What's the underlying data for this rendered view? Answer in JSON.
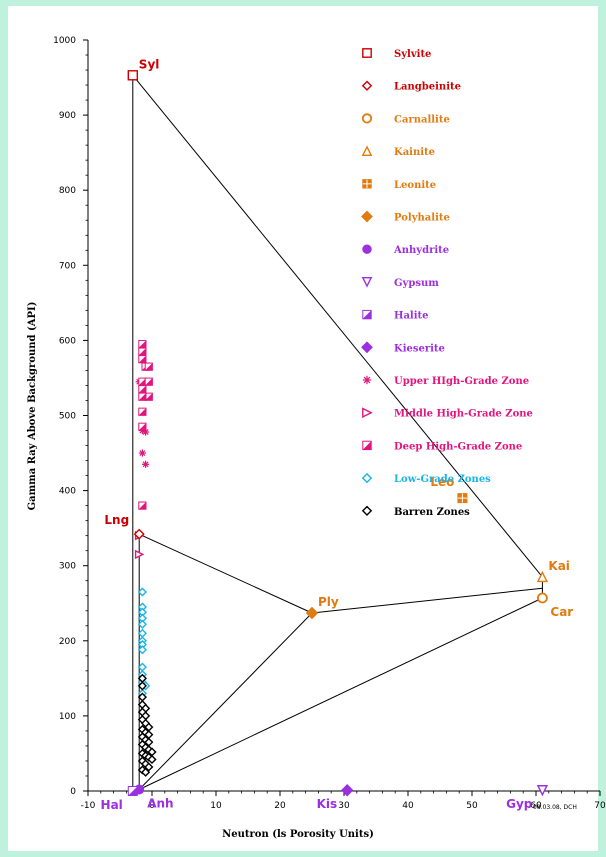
{
  "chart_data": {
    "type": "scatter",
    "xlabel": "Neutron (ls Porosity Units)",
    "ylabel": "Gamma Ray Above Background (API)",
    "xlim": [
      -10,
      70
    ],
    "ylim": [
      0,
      1000
    ],
    "x_ticks": [
      "-10",
      "0",
      "10",
      "20",
      "30",
      "40",
      "50",
      "60",
      "70"
    ],
    "y_ticks": [
      "0",
      "100",
      "200",
      "300",
      "400",
      "500",
      "600",
      "700",
      "800",
      "900",
      "1000"
    ],
    "grid": false,
    "legend_position": "top-right",
    "credit": "08.03.08, DCH",
    "legend": [
      {
        "label": "Sylvite",
        "marker": "square-open",
        "color": "#cc0000"
      },
      {
        "label": "Langbeinite",
        "marker": "diamond-open",
        "color": "#cc0000"
      },
      {
        "label": "Carnallite",
        "marker": "circle-open",
        "color": "#e07b10"
      },
      {
        "label": "Kainite",
        "marker": "triangle-open",
        "color": "#e07b10"
      },
      {
        "label": "Leonite",
        "marker": "square-grid",
        "color": "#e07b10"
      },
      {
        "label": "Polyhalite",
        "marker": "diamond-filled",
        "color": "#e07b10"
      },
      {
        "label": "Anhydrite",
        "marker": "circle-filled",
        "color": "#9b30e0"
      },
      {
        "label": "Gypsum",
        "marker": "triangle-down-open",
        "color": "#9b30e0"
      },
      {
        "label": "Halite",
        "marker": "square-half",
        "color": "#9b30e0"
      },
      {
        "label": "Kieserite",
        "marker": "diamond-filled",
        "color": "#9b30e0"
      },
      {
        "label": "Upper HIgh-Grade Zone",
        "marker": "asterisk",
        "color": "#e0157d"
      },
      {
        "label": "Middle High-Grade Zone",
        "marker": "triangle-right-open",
        "color": "#e0157d"
      },
      {
        "label": "Deep High-Grade Zone",
        "marker": "square-half",
        "color": "#e0157d"
      },
      {
        "label": "Low-Grade Zones",
        "marker": "diamond-open",
        "color": "#19b4e8"
      },
      {
        "label": "Barren Zones",
        "marker": "diamond-open",
        "color": "#000000"
      }
    ],
    "minerals": [
      {
        "label": "Syl",
        "x": -3,
        "y": 953,
        "marker": "square-open",
        "color": "#cc0000",
        "label_pos": "top-right"
      },
      {
        "label": "Lng",
        "x": -2,
        "y": 342,
        "marker": "diamond-open",
        "color": "#cc0000",
        "label_pos": "left"
      },
      {
        "label": "Car",
        "x": 61,
        "y": 257,
        "marker": "circle-open",
        "color": "#e07b10",
        "label_pos": "bottom-right"
      },
      {
        "label": "Kai",
        "x": 61,
        "y": 285,
        "marker": "triangle-open",
        "color": "#e07b10",
        "label_pos": "top-right"
      },
      {
        "label": "Leo",
        "x": 48.5,
        "y": 390,
        "marker": "square-grid",
        "color": "#e07b10",
        "label_pos": "top-left"
      },
      {
        "label": "Ply",
        "x": 25,
        "y": 237,
        "marker": "diamond-filled",
        "color": "#e07b10",
        "label_pos": "top-right"
      },
      {
        "label": "Anh",
        "x": -2,
        "y": 2,
        "marker": "circle-filled",
        "color": "#9b30e0",
        "label_pos": "bottom-right"
      },
      {
        "label": "Gyp",
        "x": 61,
        "y": 1,
        "marker": "triangle-down-open",
        "color": "#9b30e0",
        "label_pos": "bottom-left"
      },
      {
        "label": "Hal",
        "x": -3,
        "y": 0,
        "marker": "square-half",
        "color": "#9b30e0",
        "label_pos": "bottom-left"
      },
      {
        "label": "Kis",
        "x": 30.5,
        "y": 1,
        "marker": "diamond-filled",
        "color": "#9b30e0",
        "label_pos": "bottom-left"
      }
    ],
    "tie_lines": [
      [
        [
          -3,
          953
        ],
        [
          61,
          285
        ]
      ],
      [
        [
          -3,
          953
        ],
        [
          -3,
          0
        ]
      ],
      [
        [
          -2,
          342
        ],
        [
          25,
          237
        ]
      ],
      [
        [
          25,
          237
        ],
        [
          61,
          270
        ]
      ],
      [
        [
          -2,
          342
        ],
        [
          -2,
          2
        ]
      ],
      [
        [
          -2,
          2
        ],
        [
          25,
          237
        ]
      ],
      [
        [
          -2,
          2
        ],
        [
          61,
          257
        ]
      ],
      [
        [
          61,
          257
        ],
        [
          61,
          285
        ]
      ]
    ],
    "series": [
      {
        "name": "Upper HIgh-Grade Zone",
        "marker": "asterisk",
        "color": "#e0157d",
        "points": [
          [
            -2,
            545
          ],
          [
            -1.5,
            540
          ],
          [
            -1.5,
            480
          ],
          [
            -1,
            478
          ],
          [
            -1.5,
            450
          ],
          [
            -1,
            435
          ]
        ]
      },
      {
        "name": "Middle High-Grade Zone",
        "marker": "triangle-right-open",
        "color": "#e0157d",
        "points": [
          [
            -2,
            340
          ],
          [
            -2,
            315
          ]
        ]
      },
      {
        "name": "Deep High-Grade Zone",
        "marker": "square-half",
        "color": "#e0157d",
        "points": [
          [
            -1.5,
            595
          ],
          [
            -1.5,
            585
          ],
          [
            -1.5,
            575
          ],
          [
            -1,
            565
          ],
          [
            -0.5,
            565
          ],
          [
            -1.5,
            545
          ],
          [
            -0.5,
            545
          ],
          [
            -1.5,
            535
          ],
          [
            -0.5,
            525
          ],
          [
            -1.5,
            525
          ],
          [
            -1.5,
            505
          ],
          [
            -1.5,
            485
          ],
          [
            -1.5,
            380
          ]
        ]
      },
      {
        "name": "Low-Grade Zones",
        "marker": "diamond-open",
        "color": "#19b4e8",
        "points": [
          [
            -1.5,
            265
          ],
          [
            -1.5,
            245
          ],
          [
            -1.5,
            238
          ],
          [
            -1.5,
            230
          ],
          [
            -1.5,
            222
          ],
          [
            -1.5,
            210
          ],
          [
            -1.5,
            200
          ],
          [
            -1.5,
            195
          ],
          [
            -1.5,
            188
          ],
          [
            -1.5,
            165
          ],
          [
            -1.5,
            155
          ],
          [
            -1.5,
            145
          ],
          [
            -1,
            140
          ],
          [
            -1.5,
            130
          ]
        ]
      },
      {
        "name": "Barren Zones",
        "marker": "diamond-open",
        "color": "#000000",
        "points": [
          [
            -1.5,
            150
          ],
          [
            -1.5,
            140
          ],
          [
            -1.5,
            125
          ],
          [
            -1.5,
            115
          ],
          [
            -1,
            110
          ],
          [
            -1.5,
            105
          ],
          [
            -1,
            100
          ],
          [
            -1.5,
            95
          ],
          [
            -1,
            90
          ],
          [
            -0.5,
            85
          ],
          [
            -1.5,
            82
          ],
          [
            -1,
            78
          ],
          [
            -0.5,
            75
          ],
          [
            -1.5,
            72
          ],
          [
            -1,
            68
          ],
          [
            -0.5,
            65
          ],
          [
            -1.5,
            62
          ],
          [
            -1,
            58
          ],
          [
            -0.5,
            55
          ],
          [
            0,
            52
          ],
          [
            -1.5,
            50
          ],
          [
            -1,
            47
          ],
          [
            -0.5,
            45
          ],
          [
            0,
            42
          ],
          [
            -1.5,
            40
          ],
          [
            -1,
            36
          ],
          [
            -0.5,
            32
          ],
          [
            -1.5,
            28
          ],
          [
            -1,
            25
          ]
        ]
      }
    ]
  }
}
